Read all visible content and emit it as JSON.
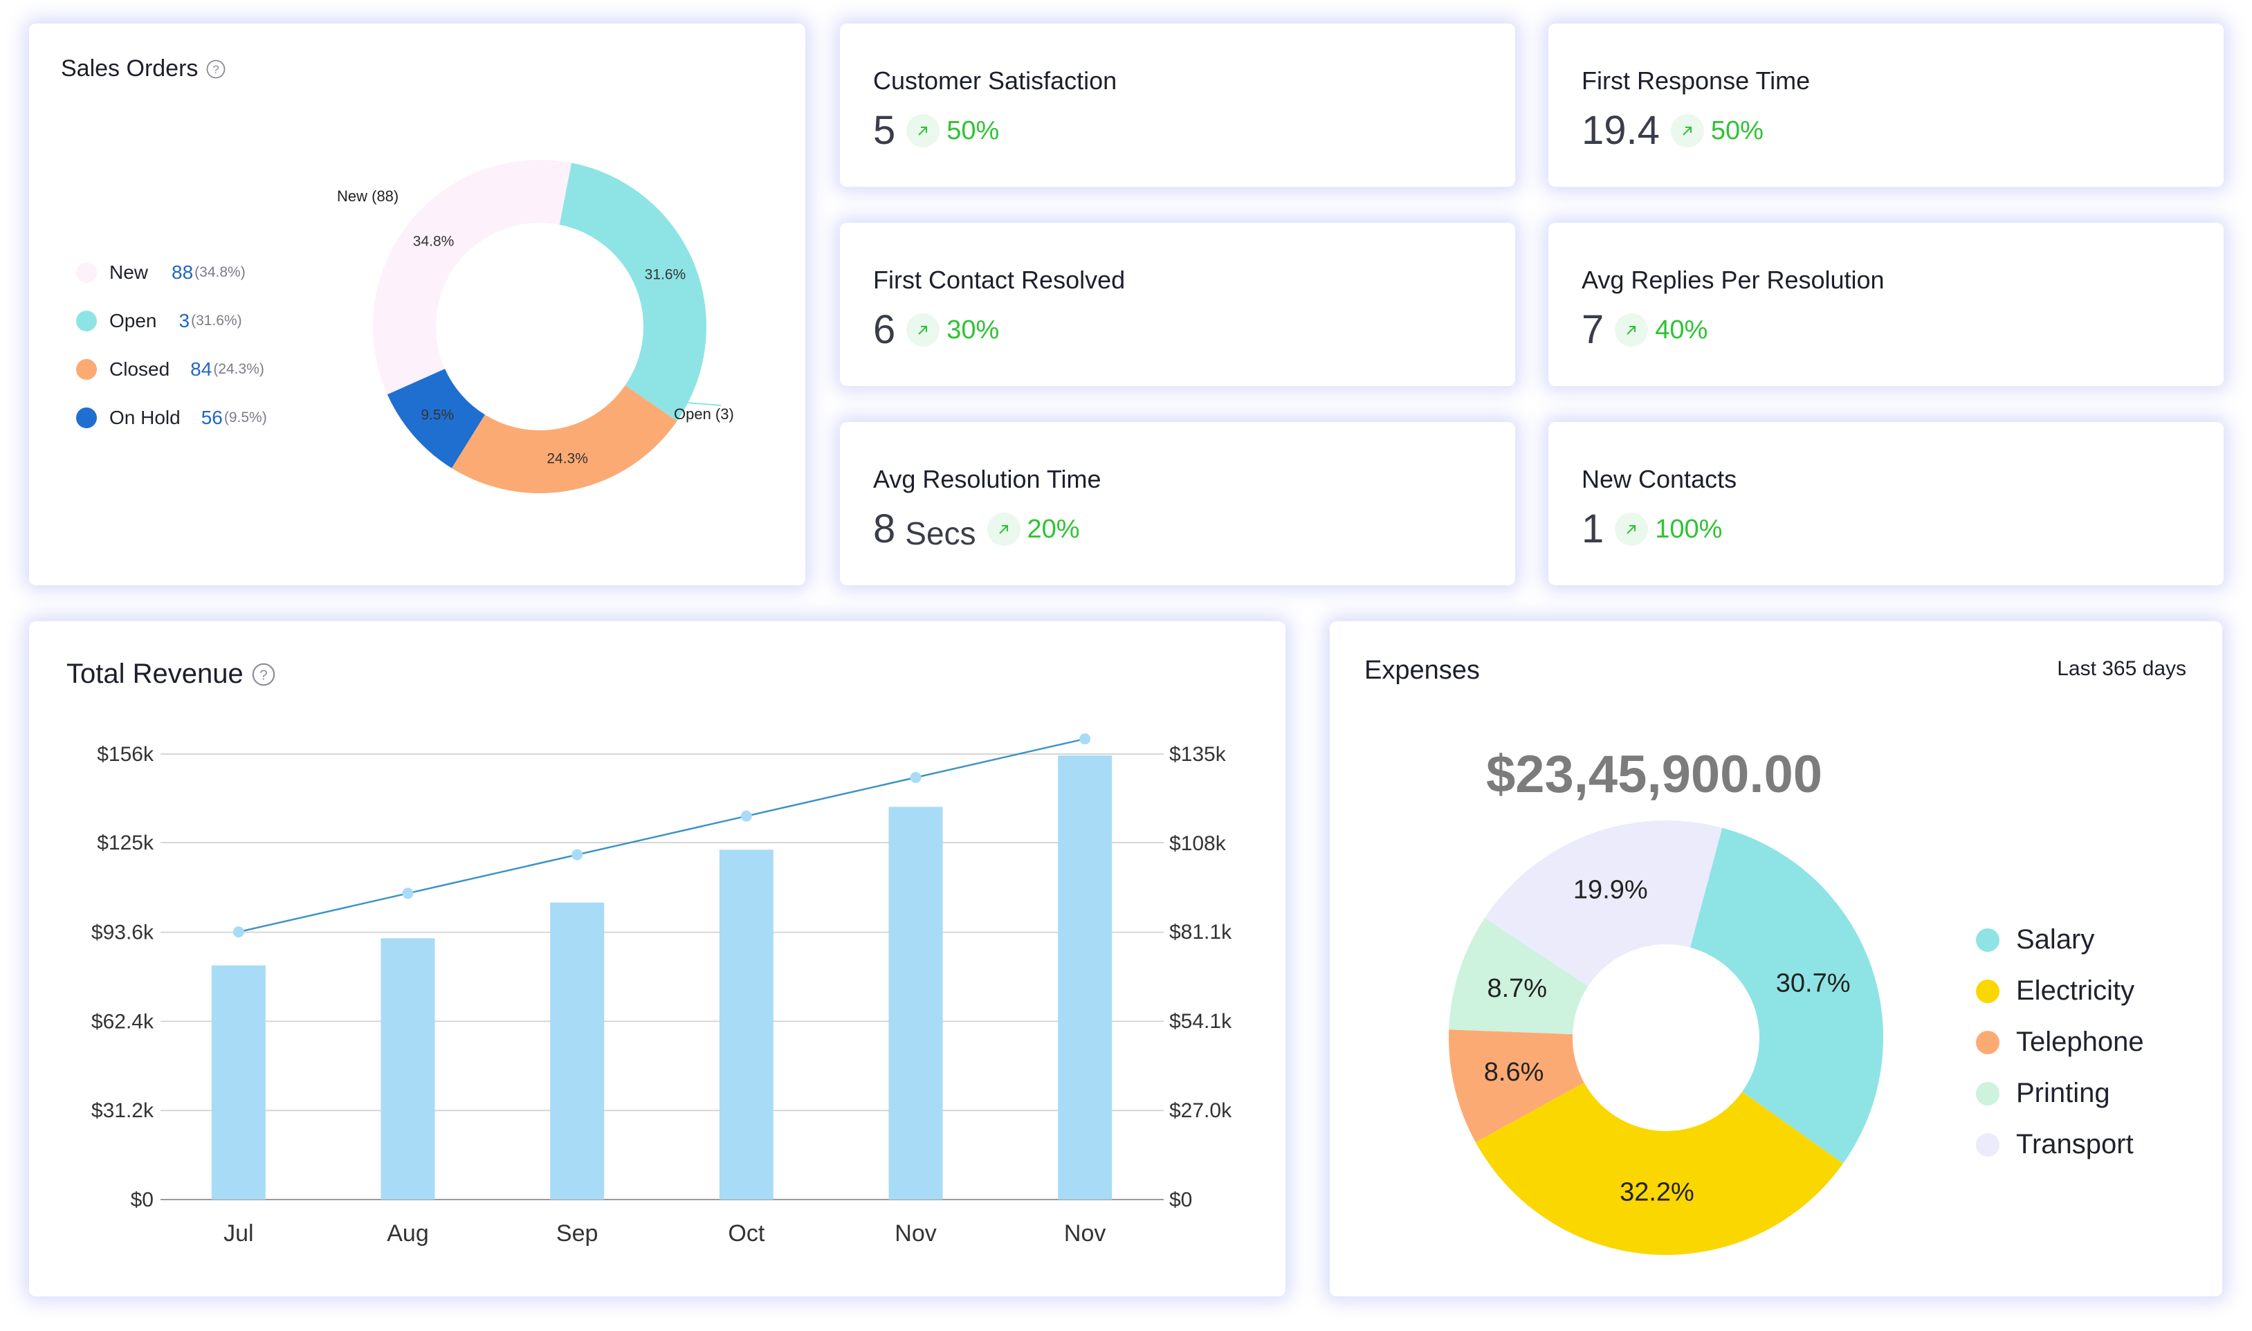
{
  "sales_orders": {
    "title": "Sales Orders",
    "legend": [
      {
        "label": "New",
        "count": "88",
        "pct": "(34.8%)",
        "color": "#fdf1fb"
      },
      {
        "label": "Open",
        "count": "3",
        "pct": "(31.6%)",
        "color": "#8ee4e4"
      },
      {
        "label": "Closed",
        "count": "84",
        "pct": "(24.3%)",
        "color": "#fcaa74"
      },
      {
        "label": "On Hold",
        "count": "56",
        "pct": "(9.5%)",
        "color": "#1f6fd0"
      }
    ],
    "callouts": {
      "new": "New (88)",
      "open": "Open (3)"
    }
  },
  "kpis": [
    {
      "title": "Customer Satisfaction",
      "value": "5",
      "unit": "",
      "pct": "50%"
    },
    {
      "title": "First Response Time",
      "value": "19.4",
      "unit": "",
      "pct": "50%"
    },
    {
      "title": "First Contact Resolved",
      "value": "6",
      "unit": "",
      "pct": "30%"
    },
    {
      "title": "Avg Replies Per Resolution",
      "value": "7",
      "unit": "",
      "pct": "40%"
    },
    {
      "title": "Avg Resolution Time",
      "value": "8",
      "unit": "Secs",
      "pct": "20%"
    },
    {
      "title": "New Contacts",
      "value": "1",
      "unit": "",
      "pct": "100%"
    }
  ],
  "revenue": {
    "title": "Total Revenue"
  },
  "expenses": {
    "title": "Expenses",
    "period": "Last 365 days",
    "total": "$23,45,900.00",
    "legend": [
      {
        "label": "Salary",
        "color": "#8ee4e4"
      },
      {
        "label": "Electricity",
        "color": "#fbd700"
      },
      {
        "label": "Telephone",
        "color": "#fcaa74"
      },
      {
        "label": "Printing",
        "color": "#cdf2de"
      },
      {
        "label": "Transport",
        "color": "#ebebfb"
      }
    ]
  },
  "chart_data": [
    {
      "type": "pie",
      "title": "Sales Orders",
      "labels": [
        "New",
        "Open",
        "Closed",
        "On Hold"
      ],
      "values": [
        34.8,
        31.6,
        24.3,
        9.5
      ],
      "value_labels": [
        "34.8%",
        "31.6%",
        "24.3%",
        "9.5%"
      ],
      "colors": [
        "#fdf1fb",
        "#8ee4e4",
        "#fcaa74",
        "#1f6fd0"
      ],
      "donut": true
    },
    {
      "type": "bar",
      "title": "Total Revenue",
      "categories": [
        "Jul",
        "Aug",
        "Sep",
        "Oct",
        "Nov",
        "Nov"
      ],
      "series": [
        {
          "name": "Revenue (bars)",
          "values": [
            82,
            91.5,
            104,
            122.5,
            137.5,
            155.5
          ],
          "axis": "left",
          "unit": "$k"
        },
        {
          "name": "Revenue (line)",
          "values": [
            81.1,
            92.8,
            104.5,
            116.2,
            127.9,
            139.6
          ],
          "axis": "right",
          "unit": "$k",
          "kind": "line"
        }
      ],
      "y_left": {
        "range": [
          0,
          156
        ],
        "ticks": [
          0,
          31.2,
          62.4,
          93.6,
          125,
          156
        ],
        "tick_labels": [
          "$0",
          "$31.2k",
          "$62.4k",
          "$93.6k",
          "$125k",
          "$156k"
        ]
      },
      "y_right": {
        "range": [
          0,
          135
        ],
        "ticks": [
          0,
          27,
          54.1,
          81.1,
          108,
          135
        ],
        "tick_labels": [
          "$0",
          "$27.0k",
          "$54.1k",
          "$81.1k",
          "$108k",
          "$135k"
        ]
      },
      "grid": true
    },
    {
      "type": "pie",
      "title": "Expenses",
      "labels": [
        "Salary",
        "Electricity",
        "Telephone",
        "Printing",
        "Transport"
      ],
      "values": [
        30.7,
        32.2,
        8.6,
        8.7,
        19.9
      ],
      "value_labels": [
        "30.7%",
        "32.2%",
        "8.6%",
        "8.7%",
        "19.9%"
      ],
      "colors": [
        "#8ee4e4",
        "#fbd700",
        "#fcaa74",
        "#cdf2de",
        "#ebebfb"
      ],
      "donut": true
    }
  ]
}
